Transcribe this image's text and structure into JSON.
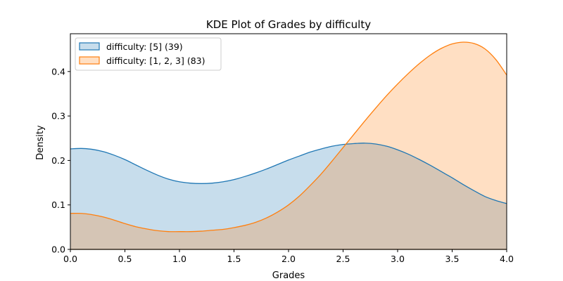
{
  "chart_data": {
    "type": "area",
    "title": "KDE Plot of Grades by difficulty",
    "xlabel": "Grades",
    "ylabel": "Density",
    "xlim": [
      0.0,
      4.0
    ],
    "ylim": [
      0.0,
      0.485
    ],
    "xticks": [
      "0.0",
      "0.5",
      "1.0",
      "1.5",
      "2.0",
      "2.5",
      "3.0",
      "3.5",
      "4.0"
    ],
    "yticks": [
      "0.0",
      "0.1",
      "0.2",
      "0.3",
      "0.4"
    ],
    "legend_position": "top-left",
    "grid": false,
    "x": [
      0.0,
      0.1,
      0.2,
      0.3,
      0.4,
      0.5,
      0.6,
      0.7,
      0.8,
      0.9,
      1.0,
      1.1,
      1.2,
      1.3,
      1.4,
      1.5,
      1.6,
      1.7,
      1.8,
      1.9,
      2.0,
      2.1,
      2.2,
      2.3,
      2.4,
      2.5,
      2.6,
      2.7,
      2.8,
      2.9,
      3.0,
      3.1,
      3.2,
      3.3,
      3.4,
      3.5,
      3.6,
      3.7,
      3.8,
      3.9,
      4.0
    ],
    "series": [
      {
        "name": "difficulty: [5] (39)",
        "color": "#1f77b4",
        "fill": "#1f77b4",
        "values": [
          0.226,
          0.227,
          0.225,
          0.22,
          0.212,
          0.202,
          0.19,
          0.178,
          0.167,
          0.158,
          0.152,
          0.149,
          0.148,
          0.149,
          0.152,
          0.157,
          0.164,
          0.172,
          0.181,
          0.191,
          0.201,
          0.21,
          0.219,
          0.226,
          0.232,
          0.236,
          0.238,
          0.239,
          0.237,
          0.232,
          0.224,
          0.214,
          0.202,
          0.189,
          0.175,
          0.161,
          0.146,
          0.132,
          0.119,
          0.11,
          0.103
        ]
      },
      {
        "name": "difficulty: [1, 2, 3] (83)",
        "color": "#ff7f0e",
        "fill": "#ff7f0e",
        "values": [
          0.081,
          0.081,
          0.078,
          0.073,
          0.066,
          0.058,
          0.051,
          0.046,
          0.042,
          0.04,
          0.04,
          0.04,
          0.041,
          0.043,
          0.045,
          0.049,
          0.054,
          0.061,
          0.071,
          0.084,
          0.1,
          0.12,
          0.144,
          0.17,
          0.199,
          0.229,
          0.259,
          0.289,
          0.318,
          0.346,
          0.372,
          0.396,
          0.418,
          0.437,
          0.452,
          0.462,
          0.466,
          0.463,
          0.451,
          0.427,
          0.392
        ]
      }
    ]
  }
}
